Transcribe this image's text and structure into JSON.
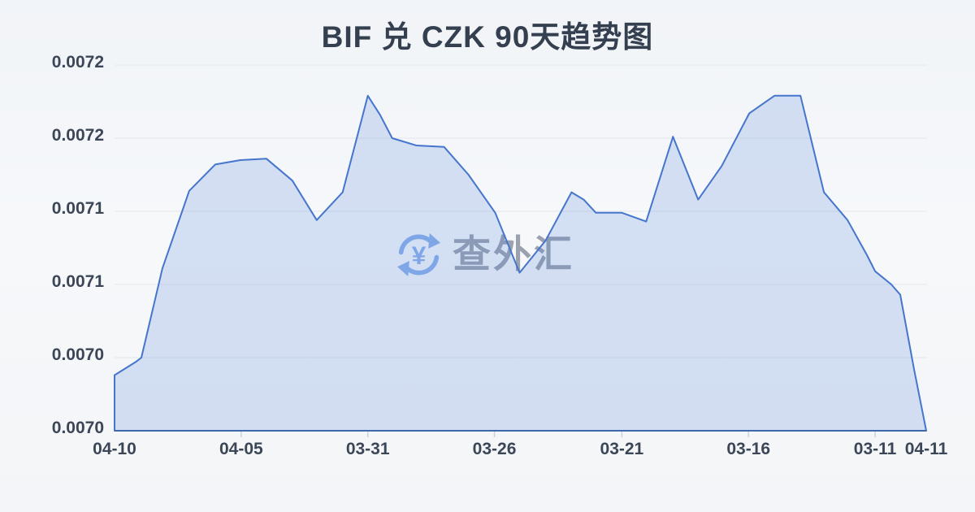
{
  "header": {
    "title": "BIF 兑 CZK 90天趋势图"
  },
  "watermark": {
    "text": "查外汇",
    "logo_icon": "circular-arrows-yen-icon",
    "yen_symbol": "¥"
  },
  "colors": {
    "line": "#4575cd",
    "axis_line": "#3d68ae",
    "area_fill": "#4d7ed6",
    "area_fill_opacity": 0.2,
    "grid": "#e4e7ec",
    "tick": "#c9d3e2",
    "title_text": "#343f4f",
    "axis_text": "#3b4657",
    "watermark_text": "#9ba2ae",
    "watermark_logo": "#8db1ec",
    "background": "#f3f6f9"
  },
  "chart_data": {
    "type": "area",
    "title": "BIF 兑 CZK 90天趋势图",
    "legend": [],
    "grid": true,
    "ylim": [
      0.00695,
      0.0072
    ],
    "y_tick_values": [
      0.0072,
      0.00715,
      0.0071,
      0.00705,
      0.007,
      0.00695
    ],
    "y_tick_labels": [
      "0.0072",
      "0.0072",
      "0.0071",
      "0.0071",
      "0.0070",
      "0.0070"
    ],
    "x_ticks": [
      {
        "label": "04-10",
        "f": 0.0,
        "tick_mark": false
      },
      {
        "label": "04-05",
        "f": 0.156,
        "tick_mark": true
      },
      {
        "label": "03-31",
        "f": 0.312,
        "tick_mark": true
      },
      {
        "label": "03-26",
        "f": 0.468,
        "tick_mark": true
      },
      {
        "label": "03-21",
        "f": 0.625,
        "tick_mark": true
      },
      {
        "label": "03-16",
        "f": 0.781,
        "tick_mark": true
      },
      {
        "label": "03-11",
        "f": 0.937,
        "tick_mark": true
      },
      {
        "label": "04-11",
        "f": 1.0,
        "tick_mark": false
      }
    ],
    "series": [
      {
        "name": "BIF/CZK",
        "points": [
          [
            0.0,
            0.006988
          ],
          [
            0.026,
            0.006997
          ],
          [
            0.033,
            0.007
          ],
          [
            0.059,
            0.007061
          ],
          [
            0.092,
            0.007114
          ],
          [
            0.124,
            0.007132
          ],
          [
            0.155,
            0.007135
          ],
          [
            0.187,
            0.007136
          ],
          [
            0.219,
            0.007121
          ],
          [
            0.249,
            0.007094
          ],
          [
            0.281,
            0.007113
          ],
          [
            0.312,
            0.007179
          ],
          [
            0.327,
            0.007166
          ],
          [
            0.342,
            0.00715
          ],
          [
            0.372,
            0.007145
          ],
          [
            0.406,
            0.007144
          ],
          [
            0.436,
            0.007125
          ],
          [
            0.469,
            0.007099
          ],
          [
            0.499,
            0.007058
          ],
          [
            0.531,
            0.00708
          ],
          [
            0.563,
            0.007113
          ],
          [
            0.578,
            0.007108
          ],
          [
            0.593,
            0.007099
          ],
          [
            0.625,
            0.007099
          ],
          [
            0.655,
            0.007093
          ],
          [
            0.688,
            0.007151
          ],
          [
            0.719,
            0.007108
          ],
          [
            0.748,
            0.007131
          ],
          [
            0.782,
            0.007167
          ],
          [
            0.813,
            0.007179
          ],
          [
            0.845,
            0.007179
          ],
          [
            0.874,
            0.007113
          ],
          [
            0.903,
            0.007094
          ],
          [
            0.927,
            0.00707
          ],
          [
            0.937,
            0.007059
          ],
          [
            0.957,
            0.00705
          ],
          [
            0.968,
            0.007043
          ],
          [
            0.985,
            0.006992
          ],
          [
            1.0,
            0.00695
          ]
        ]
      }
    ]
  }
}
